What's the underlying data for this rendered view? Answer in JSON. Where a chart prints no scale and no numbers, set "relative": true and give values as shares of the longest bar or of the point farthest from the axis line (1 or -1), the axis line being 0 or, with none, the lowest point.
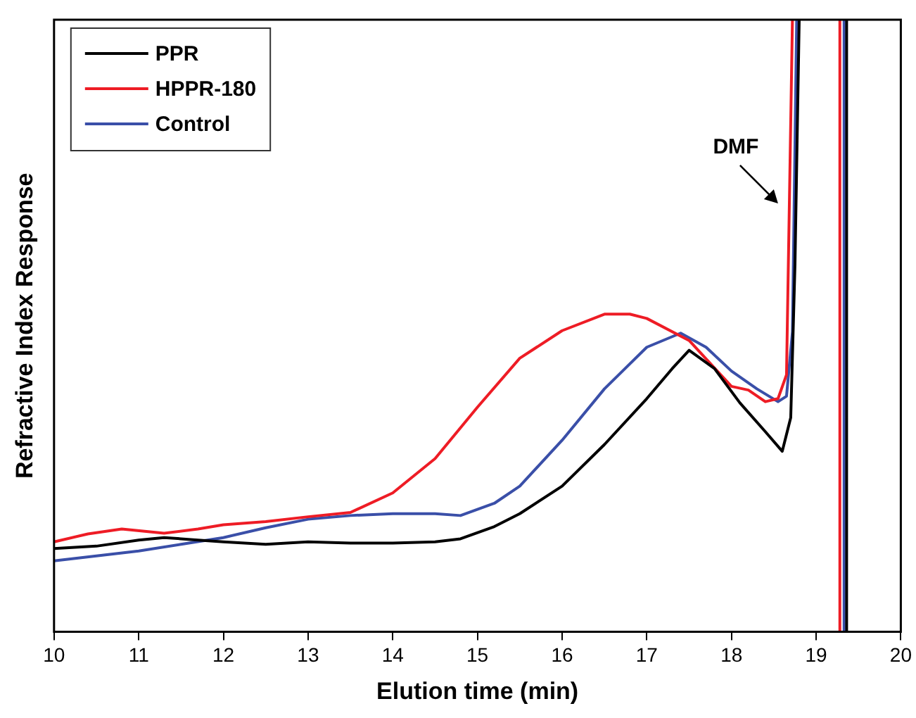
{
  "chart_data": {
    "type": "line",
    "relative": true,
    "xlabel": "Elution time (min)",
    "ylabel": "Refractive Index Response",
    "xlim": [
      10,
      20
    ],
    "xticks": [
      10,
      11,
      12,
      13,
      14,
      15,
      16,
      17,
      18,
      19,
      20
    ],
    "grid": false,
    "legend": "top left",
    "line_style": "solid",
    "marker": "none",
    "annotations": [
      "DMF"
    ],
    "series": [
      {
        "name": "PPR",
        "color": "#000000",
        "x": [
          10,
          10.5,
          11,
          11.3,
          11.7,
          12,
          12.5,
          13,
          13.5,
          14,
          14.5,
          14.8,
          15.2,
          15.5,
          16,
          16.5,
          17,
          17.3,
          17.5,
          17.8,
          18.1,
          18.4,
          18.6,
          18.7,
          18.75,
          18.8,
          19.0,
          19.36,
          19.36
        ],
        "values": [
          0.136,
          0.14,
          0.15,
          0.154,
          0.15,
          0.147,
          0.143,
          0.147,
          0.145,
          0.145,
          0.147,
          0.152,
          0.172,
          0.193,
          0.238,
          0.306,
          0.381,
          0.43,
          0.46,
          0.43,
          0.374,
          0.327,
          0.295,
          0.35,
          0.6,
          1,
          null,
          1,
          0
        ]
      },
      {
        "name": "HPPR-180",
        "color": "#ee1c25",
        "x": [
          10,
          10.4,
          10.8,
          11.3,
          11.7,
          12,
          12.5,
          13,
          13.5,
          14,
          14.5,
          15,
          15.5,
          16,
          16.5,
          16.8,
          17,
          17.5,
          17.8,
          18,
          18.2,
          18.4,
          18.55,
          18.65,
          18.72,
          19.0,
          19.28,
          19.28
        ],
        "values": [
          0.147,
          0.16,
          0.168,
          0.161,
          0.168,
          0.175,
          0.18,
          0.188,
          0.195,
          0.227,
          0.283,
          0.367,
          0.447,
          0.492,
          0.519,
          0.519,
          0.512,
          0.476,
          0.431,
          0.401,
          0.395,
          0.376,
          0.381,
          0.42,
          1,
          null,
          1,
          0
        ]
      },
      {
        "name": "Control",
        "color": "#3a4fa8",
        "x": [
          10,
          10.5,
          11,
          11.5,
          12,
          12.5,
          13,
          13.5,
          14,
          14.5,
          14.8,
          15.2,
          15.5,
          16,
          16.5,
          17,
          17.4,
          17.7,
          18,
          18.3,
          18.55,
          18.65,
          18.72,
          18.77,
          19.0,
          19.33,
          19.33
        ],
        "values": [
          0.116,
          0.124,
          0.132,
          0.143,
          0.154,
          0.17,
          0.184,
          0.19,
          0.193,
          0.193,
          0.19,
          0.21,
          0.238,
          0.313,
          0.397,
          0.465,
          0.488,
          0.465,
          0.426,
          0.397,
          0.376,
          0.385,
          0.49,
          1,
          null,
          1,
          0
        ]
      }
    ]
  }
}
